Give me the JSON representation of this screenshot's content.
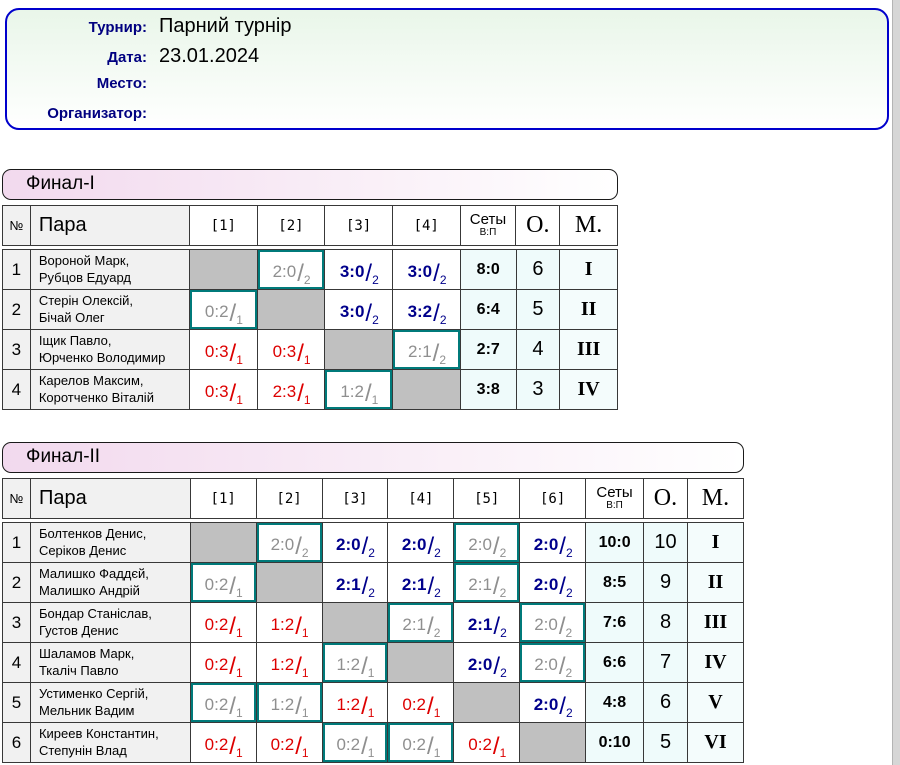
{
  "info": {
    "fields": [
      {
        "label": "Турнир:",
        "value": "Парний турнір"
      },
      {
        "label": "Дата:",
        "value": "23.01.2024"
      },
      {
        "label": "Место:",
        "value": ""
      },
      {
        "label": "Организатор:",
        "value": ""
      }
    ]
  },
  "colors": {
    "accent_border": "#0000cc",
    "label_blue": "#000080",
    "win": "#00008b",
    "loss": "#dd0000",
    "mirror_text": "#8f8f8f",
    "mirror_border": "#007a7a",
    "diagonal_bg": "#c0c0c0",
    "totals_bg": "#effbfb"
  },
  "tables": [
    {
      "title": "Финал-I",
      "col_num": "№",
      "col_pair": "Пара",
      "round_cols": [
        "[1]",
        "[2]",
        "[3]",
        "[4]"
      ],
      "col_sets": "Сеты",
      "col_sets_sub": "В:П",
      "col_points": "О.",
      "col_place": "М.",
      "rows": [
        {
          "num": "1",
          "pair": [
            "Вороной Марк,",
            "Рубцов Едуард"
          ],
          "cells": [
            {
              "t": "diag"
            },
            {
              "t": "mirror",
              "s": "2:0",
              "p": "2"
            },
            {
              "t": "win",
              "s": "3:0",
              "p": "2"
            },
            {
              "t": "win",
              "s": "3:0",
              "p": "2"
            }
          ],
          "sets": "8:0",
          "points": "6",
          "place": "I"
        },
        {
          "num": "2",
          "pair": [
            "Стерін Олексій,",
            "Бічай Олег"
          ],
          "cells": [
            {
              "t": "mirror",
              "s": "0:2",
              "p": "1"
            },
            {
              "t": "diag"
            },
            {
              "t": "win",
              "s": "3:0",
              "p": "2"
            },
            {
              "t": "win",
              "s": "3:2",
              "p": "2"
            }
          ],
          "sets": "6:4",
          "points": "5",
          "place": "II"
        },
        {
          "num": "3",
          "pair": [
            "Іщик Павло,",
            "Юрченко Володимир"
          ],
          "cells": [
            {
              "t": "loss",
              "s": "0:3",
              "p": "1"
            },
            {
              "t": "loss",
              "s": "0:3",
              "p": "1"
            },
            {
              "t": "diag"
            },
            {
              "t": "mirror",
              "s": "2:1",
              "p": "2"
            }
          ],
          "sets": "2:7",
          "points": "4",
          "place": "III"
        },
        {
          "num": "4",
          "pair": [
            "Карелов Максим,",
            "Коротченко Віталій"
          ],
          "cells": [
            {
              "t": "loss",
              "s": "0:3",
              "p": "1"
            },
            {
              "t": "loss",
              "s": "2:3",
              "p": "1"
            },
            {
              "t": "mirror",
              "s": "1:2",
              "p": "1"
            },
            {
              "t": "diag"
            }
          ],
          "sets": "3:8",
          "points": "3",
          "place": "IV"
        }
      ]
    },
    {
      "title": "Финал-II",
      "col_num": "№",
      "col_pair": "Пара",
      "round_cols": [
        "[1]",
        "[2]",
        "[3]",
        "[4]",
        "[5]",
        "[6]"
      ],
      "col_sets": "Сеты",
      "col_sets_sub": "В:П",
      "col_points": "О.",
      "col_place": "М.",
      "rows": [
        {
          "num": "1",
          "pair": [
            "Болтенков Денис,",
            "Серіков Денис"
          ],
          "cells": [
            {
              "t": "diag"
            },
            {
              "t": "mirror",
              "s": "2:0",
              "p": "2"
            },
            {
              "t": "win",
              "s": "2:0",
              "p": "2"
            },
            {
              "t": "win",
              "s": "2:0",
              "p": "2"
            },
            {
              "t": "mirror",
              "s": "2:0",
              "p": "2"
            },
            {
              "t": "win",
              "s": "2:0",
              "p": "2"
            }
          ],
          "sets": "10:0",
          "points": "10",
          "place": "I"
        },
        {
          "num": "2",
          "pair": [
            "Малишко Фаддєй,",
            "Малишко Андрій"
          ],
          "cells": [
            {
              "t": "mirror",
              "s": "0:2",
              "p": "1"
            },
            {
              "t": "diag"
            },
            {
              "t": "win",
              "s": "2:1",
              "p": "2"
            },
            {
              "t": "win",
              "s": "2:1",
              "p": "2"
            },
            {
              "t": "mirror",
              "s": "2:1",
              "p": "2"
            },
            {
              "t": "win",
              "s": "2:0",
              "p": "2"
            }
          ],
          "sets": "8:5",
          "points": "9",
          "place": "II"
        },
        {
          "num": "3",
          "pair": [
            "Бондар Станіслав,",
            "Густов Денис"
          ],
          "cells": [
            {
              "t": "loss",
              "s": "0:2",
              "p": "1"
            },
            {
              "t": "loss",
              "s": "1:2",
              "p": "1"
            },
            {
              "t": "diag"
            },
            {
              "t": "mirror",
              "s": "2:1",
              "p": "2"
            },
            {
              "t": "win",
              "s": "2:1",
              "p": "2"
            },
            {
              "t": "mirror",
              "s": "2:0",
              "p": "2"
            }
          ],
          "sets": "7:6",
          "points": "8",
          "place": "III"
        },
        {
          "num": "4",
          "pair": [
            "Шаламов Марк,",
            "Ткаліч Павло"
          ],
          "cells": [
            {
              "t": "loss",
              "s": "0:2",
              "p": "1"
            },
            {
              "t": "loss",
              "s": "1:2",
              "p": "1"
            },
            {
              "t": "mirror",
              "s": "1:2",
              "p": "1"
            },
            {
              "t": "diag"
            },
            {
              "t": "win",
              "s": "2:0",
              "p": "2"
            },
            {
              "t": "mirror",
              "s": "2:0",
              "p": "2"
            }
          ],
          "sets": "6:6",
          "points": "7",
          "place": "IV"
        },
        {
          "num": "5",
          "pair": [
            "Устименко Сергій,",
            "Мельник Вадим"
          ],
          "cells": [
            {
              "t": "mirror",
              "s": "0:2",
              "p": "1"
            },
            {
              "t": "mirror",
              "s": "1:2",
              "p": "1"
            },
            {
              "t": "loss",
              "s": "1:2",
              "p": "1"
            },
            {
              "t": "loss",
              "s": "0:2",
              "p": "1"
            },
            {
              "t": "diag"
            },
            {
              "t": "win",
              "s": "2:0",
              "p": "2"
            }
          ],
          "sets": "4:8",
          "points": "6",
          "place": "V"
        },
        {
          "num": "6",
          "pair": [
            "Киреев Константин,",
            "Степунін Влад"
          ],
          "cells": [
            {
              "t": "loss",
              "s": "0:2",
              "p": "1"
            },
            {
              "t": "loss",
              "s": "0:2",
              "p": "1"
            },
            {
              "t": "mirror",
              "s": "0:2",
              "p": "1"
            },
            {
              "t": "mirror",
              "s": "0:2",
              "p": "1"
            },
            {
              "t": "loss",
              "s": "0:2",
              "p": "1"
            },
            {
              "t": "diag"
            }
          ],
          "sets": "0:10",
          "points": "5",
          "place": "VI"
        }
      ]
    }
  ]
}
